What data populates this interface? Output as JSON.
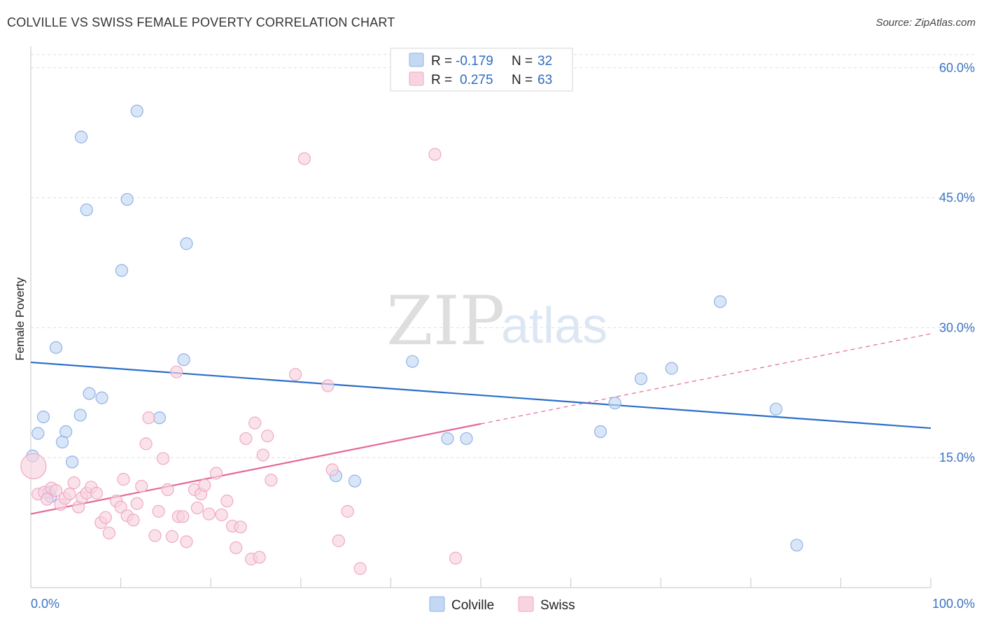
{
  "title": "COLVILLE VS SWISS FEMALE POVERTY CORRELATION CHART",
  "source": "Source: ZipAtlas.com",
  "watermark": {
    "zip": "ZIP",
    "atlas": "atlas"
  },
  "colors": {
    "colville": "#8fb3e8",
    "colville_fill": "#c5d8f3",
    "colville_line": "#2a6fc9",
    "swiss": "#f1a9c1",
    "swiss_fill": "#f8d3e0",
    "swiss_line": "#e4679a",
    "tick": "#3a74c4",
    "grid": "#dddddd"
  },
  "legend_top": {
    "rows": [
      {
        "r_label": "R =",
        "r_value": "-0.179",
        "n_label": "N =",
        "n_value": "32"
      },
      {
        "r_label": "R =",
        "r_value": "0.275",
        "n_label": "N =",
        "n_value": "63"
      }
    ]
  },
  "legend_bottom": {
    "items": [
      "Colville",
      "Swiss"
    ]
  },
  "chart_data": {
    "type": "scatter",
    "ylabel": "Female Poverty",
    "xlim": [
      0,
      100
    ],
    "ylim": [
      0,
      62
    ],
    "x_tick_labels": [
      "0.0%",
      "100.0%"
    ],
    "y_ticks": [
      15,
      30,
      45,
      60
    ],
    "y_tick_labels": [
      "15.0%",
      "30.0%",
      "45.0%",
      "60.0%"
    ],
    "grid": "horizontal dashed",
    "legend_position": "top-center",
    "series": [
      {
        "name": "Colville",
        "trend": {
          "x0": 0,
          "y0": 26.0,
          "x1": 100,
          "y1": 18.4
        },
        "points": [
          [
            11.8,
            55.0
          ],
          [
            5.6,
            52.0
          ],
          [
            10.7,
            44.8
          ],
          [
            6.2,
            43.6
          ],
          [
            17.3,
            39.7
          ],
          [
            10.1,
            36.6
          ],
          [
            2.8,
            27.7
          ],
          [
            17.0,
            26.3
          ],
          [
            6.5,
            22.4
          ],
          [
            7.9,
            21.9
          ],
          [
            1.4,
            19.7
          ],
          [
            5.5,
            19.9
          ],
          [
            14.3,
            19.6
          ],
          [
            0.8,
            17.8
          ],
          [
            3.9,
            18.0
          ],
          [
            3.5,
            16.8
          ],
          [
            4.6,
            14.5
          ],
          [
            0.2,
            15.2
          ],
          [
            2.0,
            11.0
          ],
          [
            2.2,
            10.5
          ],
          [
            33.9,
            12.9
          ],
          [
            36.0,
            12.3
          ],
          [
            42.4,
            26.1
          ],
          [
            46.3,
            17.2
          ],
          [
            48.4,
            17.2
          ],
          [
            63.3,
            18.0
          ],
          [
            64.9,
            21.3
          ],
          [
            67.8,
            24.1
          ],
          [
            71.2,
            25.3
          ],
          [
            76.6,
            33.0
          ],
          [
            82.8,
            20.6
          ],
          [
            85.1,
            4.9
          ]
        ]
      },
      {
        "name": "Swiss",
        "trend": {
          "x0": 0,
          "y0": 8.5,
          "x1": 50,
          "y1": 18.9,
          "dash_x1": 100,
          "dash_y1": 29.3
        },
        "points": [
          [
            0.3,
            14.0
          ],
          [
            0.8,
            10.8
          ],
          [
            1.5,
            11.0
          ],
          [
            1.8,
            10.2
          ],
          [
            2.3,
            11.5
          ],
          [
            2.8,
            11.2
          ],
          [
            3.3,
            9.6
          ],
          [
            3.8,
            10.3
          ],
          [
            4.3,
            10.8
          ],
          [
            4.8,
            12.1
          ],
          [
            5.3,
            9.3
          ],
          [
            5.7,
            10.4
          ],
          [
            6.2,
            10.9
          ],
          [
            6.7,
            11.6
          ],
          [
            7.3,
            10.9
          ],
          [
            7.8,
            7.5
          ],
          [
            8.3,
            8.1
          ],
          [
            8.7,
            6.3
          ],
          [
            9.5,
            10.0
          ],
          [
            10.0,
            9.3
          ],
          [
            10.3,
            12.5
          ],
          [
            10.7,
            8.3
          ],
          [
            11.4,
            7.8
          ],
          [
            11.8,
            9.7
          ],
          [
            12.3,
            11.7
          ],
          [
            13.1,
            19.6
          ],
          [
            12.8,
            16.6
          ],
          [
            13.8,
            6.0
          ],
          [
            14.2,
            8.8
          ],
          [
            14.7,
            14.9
          ],
          [
            15.2,
            11.3
          ],
          [
            15.7,
            5.9
          ],
          [
            16.4,
            8.2
          ],
          [
            16.9,
            8.2
          ],
          [
            17.3,
            5.3
          ],
          [
            18.2,
            11.3
          ],
          [
            18.5,
            9.2
          ],
          [
            18.9,
            10.8
          ],
          [
            19.3,
            11.8
          ],
          [
            19.8,
            8.5
          ],
          [
            20.6,
            13.2
          ],
          [
            21.2,
            8.4
          ],
          [
            21.8,
            10.0
          ],
          [
            22.4,
            7.1
          ],
          [
            22.8,
            4.6
          ],
          [
            23.3,
            7.0
          ],
          [
            23.9,
            17.2
          ],
          [
            24.5,
            3.3
          ],
          [
            24.9,
            19.0
          ],
          [
            25.4,
            3.5
          ],
          [
            25.8,
            15.3
          ],
          [
            26.3,
            17.5
          ],
          [
            26.7,
            12.4
          ],
          [
            16.2,
            24.9
          ],
          [
            29.4,
            24.6
          ],
          [
            30.4,
            49.5
          ],
          [
            33.0,
            23.3
          ],
          [
            33.5,
            13.6
          ],
          [
            34.2,
            5.4
          ],
          [
            35.2,
            8.8
          ],
          [
            36.6,
            2.2
          ],
          [
            44.9,
            50.0
          ],
          [
            47.2,
            3.4
          ]
        ]
      }
    ]
  }
}
